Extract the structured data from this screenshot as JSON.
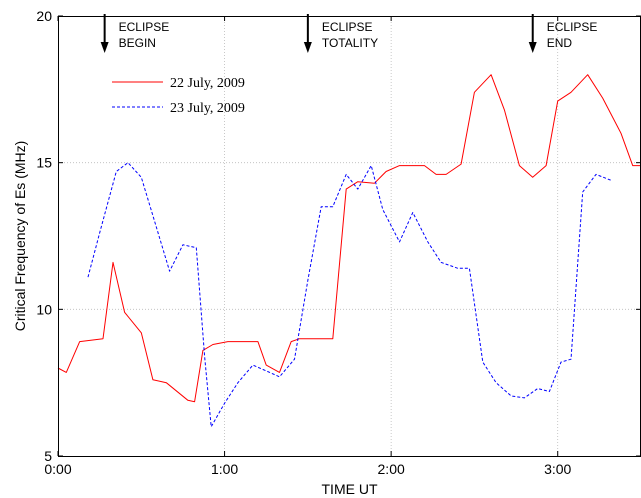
{
  "chart_data": {
    "type": "line",
    "xlabel": "TIME UT",
    "ylabel": "Critical Frequency of Es (MHz)",
    "xlim": [
      0,
      3.5
    ],
    "ylim": [
      5,
      20
    ],
    "x_ticks": [
      0,
      1,
      2,
      3
    ],
    "x_tick_labels": [
      "0:00",
      "1:00",
      "2:00",
      "3:00"
    ],
    "y_ticks": [
      5,
      10,
      15,
      20
    ],
    "y_tick_labels": [
      "5",
      "10",
      "15",
      "20"
    ],
    "grid": true,
    "legend_position": "upper-left",
    "annotations": [
      {
        "x": 0.28,
        "lines": [
          "ECLIPSE",
          "BEGIN"
        ]
      },
      {
        "x": 1.5,
        "lines": [
          "ECLIPSE",
          "TOTALITY"
        ]
      },
      {
        "x": 2.85,
        "lines": [
          "ECLIPSE",
          "END"
        ]
      }
    ],
    "series": [
      {
        "name": "22 July, 2009",
        "color": "#ff0000",
        "dash": "solid",
        "points": [
          [
            0.0,
            8.0
          ],
          [
            0.05,
            7.85
          ],
          [
            0.13,
            8.9
          ],
          [
            0.27,
            9.0
          ],
          [
            0.33,
            11.6
          ],
          [
            0.4,
            9.9
          ],
          [
            0.5,
            9.2
          ],
          [
            0.57,
            7.6
          ],
          [
            0.65,
            7.5
          ],
          [
            0.78,
            6.9
          ],
          [
            0.82,
            6.85
          ],
          [
            0.87,
            8.6
          ],
          [
            0.93,
            8.8
          ],
          [
            1.02,
            8.9
          ],
          [
            1.1,
            8.9
          ],
          [
            1.2,
            8.9
          ],
          [
            1.25,
            8.1
          ],
          [
            1.33,
            7.85
          ],
          [
            1.4,
            8.9
          ],
          [
            1.45,
            9.0
          ],
          [
            1.55,
            9.0
          ],
          [
            1.65,
            9.0
          ],
          [
            1.73,
            14.1
          ],
          [
            1.8,
            14.35
          ],
          [
            1.9,
            14.3
          ],
          [
            1.97,
            14.7
          ],
          [
            2.05,
            14.9
          ],
          [
            2.13,
            14.9
          ],
          [
            2.2,
            14.9
          ],
          [
            2.27,
            14.6
          ],
          [
            2.33,
            14.6
          ],
          [
            2.42,
            14.95
          ],
          [
            2.5,
            17.4
          ],
          [
            2.6,
            18.0
          ],
          [
            2.68,
            16.8
          ],
          [
            2.77,
            14.9
          ],
          [
            2.85,
            14.5
          ],
          [
            2.93,
            14.9
          ],
          [
            3.0,
            17.1
          ],
          [
            3.08,
            17.4
          ],
          [
            3.18,
            18.0
          ],
          [
            3.27,
            17.2
          ],
          [
            3.38,
            16.0
          ],
          [
            3.45,
            14.9
          ],
          [
            3.5,
            14.9
          ]
        ]
      },
      {
        "name": "23 July, 2009",
        "color": "#0000ff",
        "dash": "dashed",
        "points": [
          [
            0.18,
            11.1
          ],
          [
            0.25,
            12.6
          ],
          [
            0.35,
            14.7
          ],
          [
            0.42,
            15.0
          ],
          [
            0.5,
            14.5
          ],
          [
            0.58,
            13.0
          ],
          [
            0.67,
            11.3
          ],
          [
            0.75,
            12.2
          ],
          [
            0.83,
            12.1
          ],
          [
            0.88,
            8.4
          ],
          [
            0.92,
            6.0
          ],
          [
            1.0,
            6.8
          ],
          [
            1.08,
            7.5
          ],
          [
            1.17,
            8.1
          ],
          [
            1.25,
            7.9
          ],
          [
            1.33,
            7.7
          ],
          [
            1.42,
            8.3
          ],
          [
            1.5,
            11.0
          ],
          [
            1.58,
            13.5
          ],
          [
            1.65,
            13.5
          ],
          [
            1.73,
            14.6
          ],
          [
            1.8,
            14.1
          ],
          [
            1.88,
            14.9
          ],
          [
            1.95,
            13.4
          ],
          [
            2.05,
            12.3
          ],
          [
            2.13,
            13.3
          ],
          [
            2.22,
            12.3
          ],
          [
            2.3,
            11.6
          ],
          [
            2.4,
            11.4
          ],
          [
            2.47,
            11.4
          ],
          [
            2.55,
            8.2
          ],
          [
            2.63,
            7.5
          ],
          [
            2.72,
            7.05
          ],
          [
            2.8,
            6.98
          ],
          [
            2.88,
            7.3
          ],
          [
            2.95,
            7.2
          ],
          [
            3.02,
            8.2
          ],
          [
            3.08,
            8.3
          ],
          [
            3.15,
            14.0
          ],
          [
            3.23,
            14.6
          ],
          [
            3.32,
            14.4
          ]
        ]
      }
    ]
  }
}
